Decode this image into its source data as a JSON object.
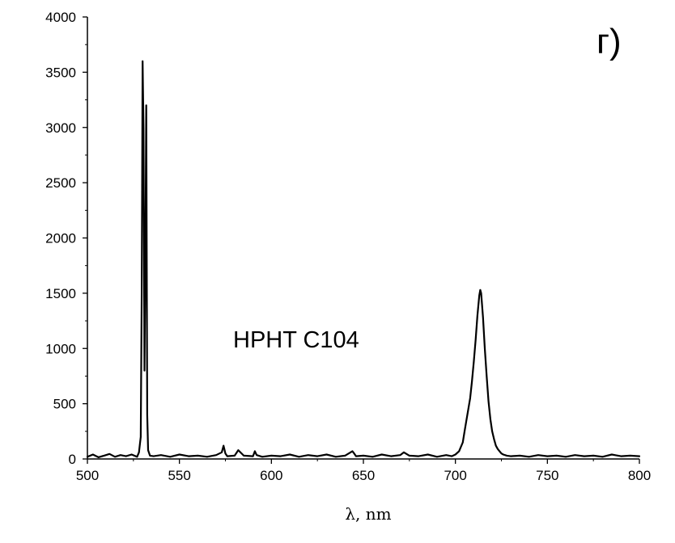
{
  "chart_data": {
    "type": "line",
    "title": "",
    "panel_label": "г)",
    "annotation": "HPHT C104",
    "xlabel": "λ, nm",
    "ylabel": "",
    "xlim": [
      500,
      800
    ],
    "ylim": [
      0,
      4000
    ],
    "x_ticks": [
      500,
      550,
      600,
      650,
      700,
      750,
      800
    ],
    "y_ticks": [
      0,
      500,
      1000,
      1500,
      2000,
      2500,
      3000,
      3500,
      4000
    ],
    "grid": false,
    "legend": "none",
    "line_color": "#000000",
    "series": [
      {
        "x": [
          500,
          503,
          506,
          509,
          512,
          515,
          518,
          521,
          524,
          527,
          528,
          529,
          529.5,
          530,
          530.5,
          531,
          531.5,
          532,
          532.5,
          533,
          534,
          536,
          540,
          545,
          550,
          555,
          560,
          565,
          570,
          573,
          574,
          575,
          576,
          580,
          582,
          585,
          590,
          591,
          592,
          595,
          600,
          605,
          610,
          615,
          620,
          625,
          630,
          635,
          640,
          644,
          645,
          646,
          650,
          655,
          660,
          665,
          670,
          672,
          675,
          680,
          685,
          690,
          695,
          698,
          700,
          702,
          704,
          705,
          706,
          707,
          708,
          709,
          710,
          711,
          712,
          713,
          713.5,
          714,
          715,
          716,
          717,
          718,
          719,
          720,
          721,
          722,
          723,
          724,
          725,
          726,
          728,
          730,
          735,
          740,
          745,
          750,
          755,
          760,
          765,
          770,
          775,
          780,
          785,
          790,
          795,
          800
        ],
        "y": [
          20,
          40,
          15,
          30,
          45,
          20,
          35,
          25,
          40,
          20,
          60,
          200,
          1500,
          3600,
          3000,
          800,
          1800,
          3200,
          400,
          80,
          30,
          25,
          35,
          20,
          40,
          25,
          30,
          20,
          35,
          60,
          120,
          50,
          25,
          30,
          80,
          30,
          25,
          70,
          35,
          20,
          30,
          25,
          40,
          20,
          35,
          25,
          40,
          20,
          30,
          70,
          50,
          25,
          30,
          20,
          40,
          25,
          35,
          60,
          30,
          25,
          40,
          20,
          35,
          25,
          40,
          70,
          150,
          250,
          350,
          450,
          550,
          700,
          880,
          1080,
          1300,
          1480,
          1530,
          1500,
          1280,
          1000,
          750,
          520,
          360,
          250,
          180,
          120,
          90,
          70,
          50,
          40,
          30,
          25,
          30,
          20,
          35,
          25,
          30,
          20,
          35,
          25,
          30,
          20,
          40,
          25,
          30,
          25
        ]
      }
    ]
  }
}
